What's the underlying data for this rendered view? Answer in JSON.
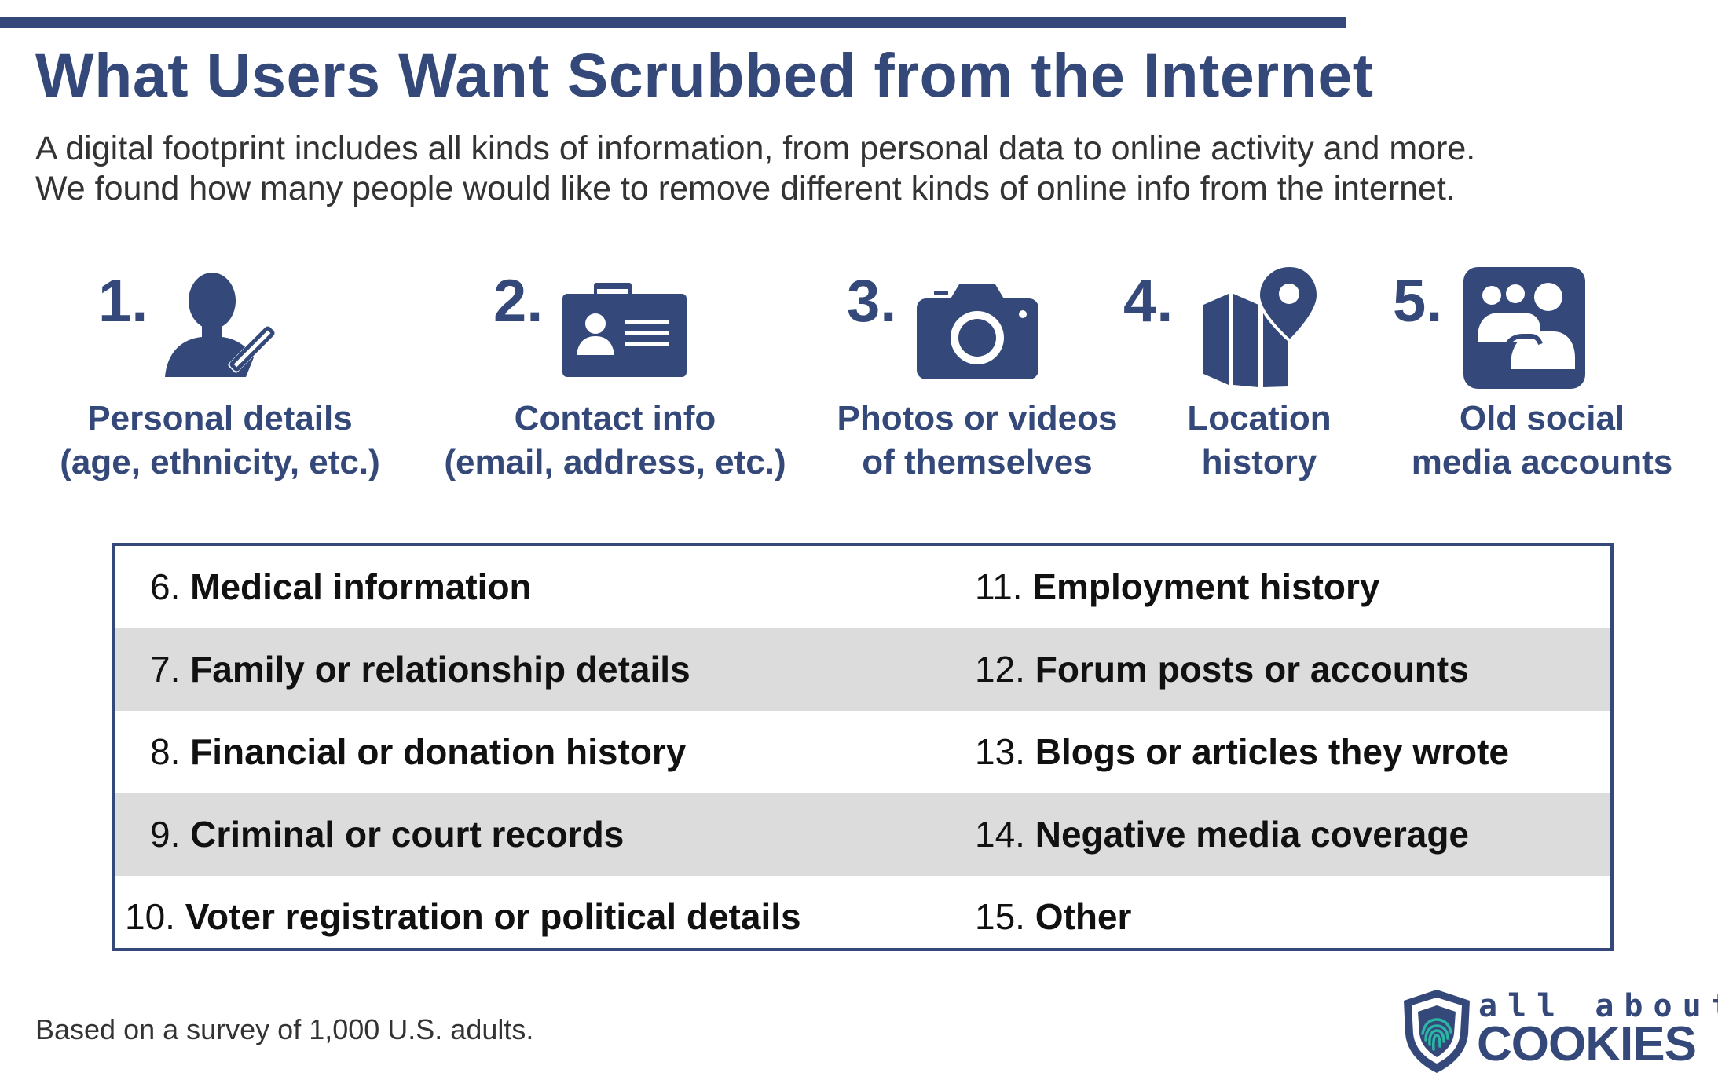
{
  "title": "What Users Want Scrubbed from the Internet",
  "subtitle_lines": [
    "A digital footprint includes all kinds of information, from personal data to online activity and more.",
    "We found how many people would like to remove different kinds of online info from the internet."
  ],
  "top_items": [
    {
      "num": "1.",
      "icon": "person-pencil-icon",
      "line1": "Personal details",
      "line2": "(age, ethnicity, etc.)"
    },
    {
      "num": "2.",
      "icon": "contact-card-icon",
      "line1": "Contact info",
      "line2": "(email, address, etc.)"
    },
    {
      "num": "3.",
      "icon": "camera-icon",
      "line1": "Photos or videos",
      "line2": "of themselves"
    },
    {
      "num": "4.",
      "icon": "map-pin-icon",
      "line1": "Location",
      "line2": "history"
    },
    {
      "num": "5.",
      "icon": "social-group-icon",
      "line1": "Old social",
      "line2": "media accounts"
    }
  ],
  "list_left": [
    {
      "num": "6.",
      "text": "Medical information"
    },
    {
      "num": "7.",
      "text": "Family or relationship details"
    },
    {
      "num": "8.",
      "text": "Financial or donation history"
    },
    {
      "num": "9.",
      "text": "Criminal or court records"
    },
    {
      "num": "10.",
      "text": "Voter registration or political details"
    }
  ],
  "list_right": [
    {
      "num": "11.",
      "text": "Employment history"
    },
    {
      "num": "12.",
      "text": "Forum posts or accounts"
    },
    {
      "num": "13.",
      "text": "Blogs or articles they wrote"
    },
    {
      "num": "14.",
      "text": "Negative media coverage"
    },
    {
      "num": "15.",
      "text": "Other"
    }
  ],
  "footnote": "Based on a survey of 1,000 U.S. adults.",
  "logo": {
    "tagline": "all about",
    "brand": "COOKIES"
  },
  "colors": {
    "primary": "#34497a",
    "row_alt": "#dcdcdc",
    "accent": "#2bb5a4"
  }
}
